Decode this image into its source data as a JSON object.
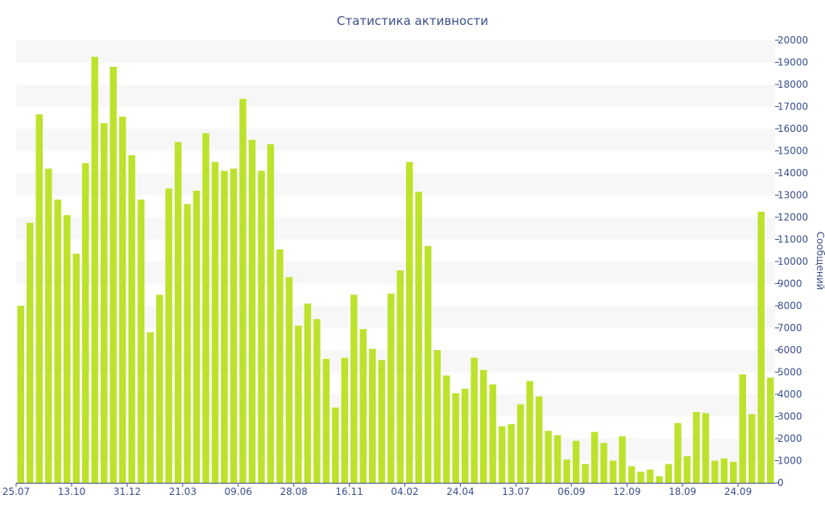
{
  "colors": {
    "bar": "#bde22c",
    "text": "#3a4f8c",
    "band": "#f7f7f7",
    "axis": "#3a4f8c"
  },
  "chart_data": {
    "type": "bar",
    "title": "Статистика активности",
    "xlabel": "",
    "ylabel": "Сообщений",
    "ylim": [
      0,
      20000
    ],
    "y_ticks": [
      "0",
      "1000",
      "2000",
      "3000",
      "4000",
      "5000",
      "6000",
      "7000",
      "8000",
      "9000",
      "10000",
      "11000",
      "12000",
      "13000",
      "14000",
      "15000",
      "16000",
      "17000",
      "18000",
      "19000",
      "20000"
    ],
    "y_axis_side": "right",
    "grid": "alternating horizontal bands",
    "x_tick_labels": [
      {
        "label": "25.07",
        "index": 0
      },
      {
        "label": "13.10",
        "index": 6
      },
      {
        "label": "31.12",
        "index": 12
      },
      {
        "label": "21.03",
        "index": 18
      },
      {
        "label": "09.06",
        "index": 24
      },
      {
        "label": "28.08",
        "index": 30
      },
      {
        "label": "16.11",
        "index": 36
      },
      {
        "label": "04.02",
        "index": 42
      },
      {
        "label": "24.04",
        "index": 48
      },
      {
        "label": "13.07",
        "index": 54
      },
      {
        "label": "06.09",
        "index": 60
      },
      {
        "label": "12.09",
        "index": 66
      },
      {
        "label": "18.09",
        "index": 72
      },
      {
        "label": "24.09",
        "index": 78
      }
    ],
    "values": [
      8000,
      11750,
      16650,
      14200,
      12800,
      12100,
      10350,
      14450,
      19250,
      16250,
      18800,
      16550,
      14800,
      12800,
      6800,
      8500,
      13300,
      15400,
      12600,
      13200,
      15800,
      14500,
      14100,
      14200,
      17350,
      15500,
      14100,
      15300,
      10550,
      9300,
      7100,
      8100,
      7400,
      5600,
      3400,
      5650,
      8500,
      6950,
      6050,
      5550,
      8550,
      9600,
      14500,
      13150,
      10700,
      6000,
      4850,
      4050,
      4250,
      5650,
      5100,
      4450,
      2550,
      2650,
      3550,
      4600,
      3900,
      2350,
      2150,
      1050,
      1900,
      850,
      2300,
      1800,
      1000,
      2100,
      750,
      500,
      600,
      300,
      850,
      2700,
      1200,
      3200,
      3150,
      1000,
      1100,
      950,
      4900,
      3100,
      12250,
      4750
    ]
  }
}
